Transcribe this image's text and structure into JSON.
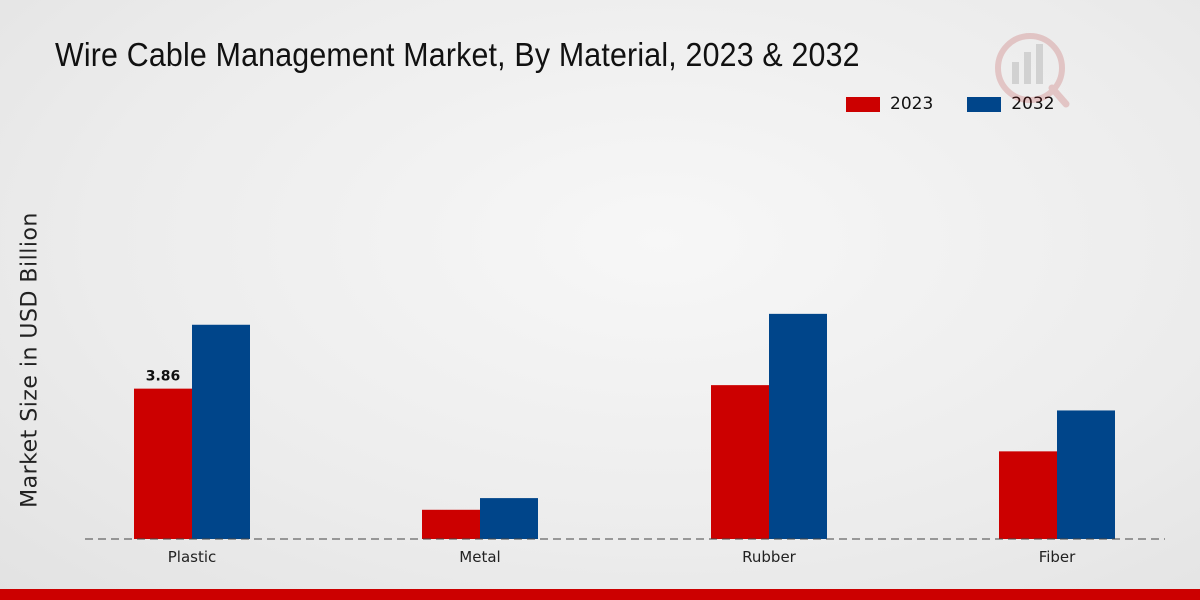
{
  "title": "Wire Cable Management Market, By Material, 2023 & 2032",
  "colors": {
    "2023": "#cc0000",
    "2032": "#00458a"
  },
  "chart_data": {
    "type": "bar",
    "title": "Wire Cable Management Market, By Material, 2023 & 2032",
    "xlabel": "",
    "ylabel": "Market Size in USD Billion",
    "categories": [
      "Plastic",
      "Metal",
      "Rubber",
      "Fiber"
    ],
    "series": [
      {
        "name": "2023",
        "values": [
          3.86,
          0.75,
          3.95,
          2.25
        ]
      },
      {
        "name": "2032",
        "values": [
          5.5,
          1.05,
          5.78,
          3.3
        ]
      }
    ],
    "data_labels": [
      {
        "series": "2023",
        "category": "Plastic",
        "text": "3.86"
      }
    ],
    "ylim": [
      0,
      10.5
    ],
    "legend": "top-right",
    "grid": false
  }
}
